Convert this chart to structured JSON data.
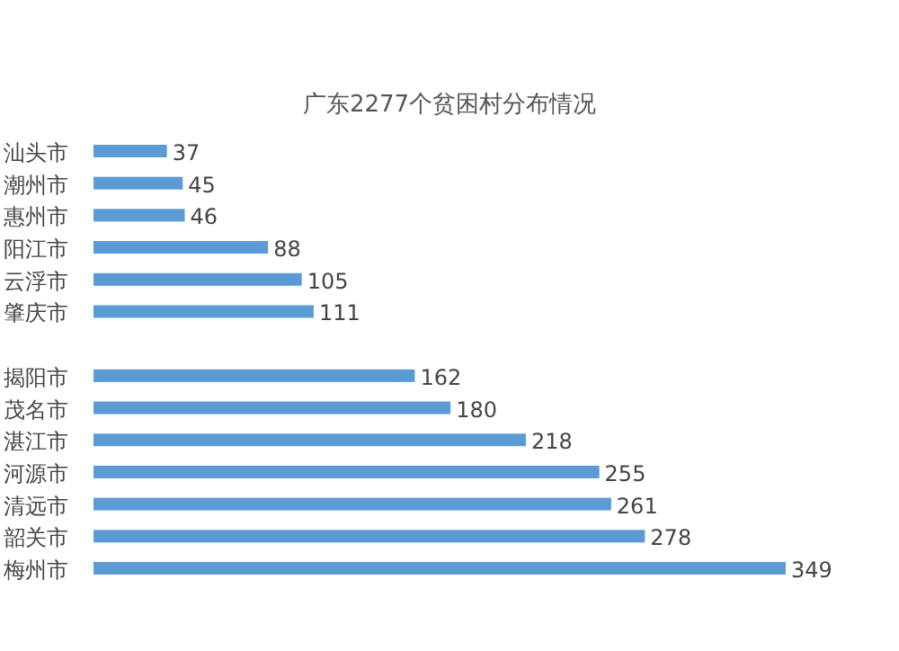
{
  "chart_data": {
    "type": "bar",
    "orientation": "horizontal",
    "title": "广东2277个贫困村分布情况",
    "categories": [
      "汕头市",
      "潮州市",
      "惠州市",
      "阳江市",
      "云浮市",
      "肇庆市",
      null,
      "揭阳市",
      "茂名市",
      "湛江市",
      "河源市",
      "清远市",
      "韶关市",
      "梅州市"
    ],
    "values": [
      37,
      45,
      46,
      88,
      105,
      111,
      null,
      162,
      180,
      218,
      255,
      261,
      278,
      349
    ],
    "color": "#5b9bd5",
    "data_labels": true
  }
}
